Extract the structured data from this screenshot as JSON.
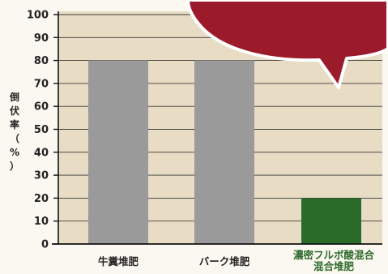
{
  "chart_data": {
    "type": "bar",
    "ylabel": "倒伏率（%）",
    "ylim": [
      0,
      100
    ],
    "yticks": [
      0,
      10,
      20,
      30,
      40,
      50,
      60,
      70,
      80,
      90,
      100
    ],
    "categories": [
      "牛糞堆肥",
      "バーク堆肥",
      "濃密フルボ酸混合混合堆肥"
    ],
    "category_lines": [
      [
        "牛糞堆肥"
      ],
      [
        "バーク堆肥"
      ],
      [
        "濃密フルボ酸混合",
        "混合堆肥"
      ]
    ],
    "values": [
      80,
      80,
      20
    ],
    "colors": {
      "plot_background": "#e8dcc4",
      "gridline": "#3a3a3a",
      "bar_gray": "#9a9a9a",
      "bar_green": "#2b6b29",
      "bubble": "#9c1b2b",
      "bubble_outline": "#ffffff",
      "label_green": "#2e6b2b"
    },
    "bar_colors": [
      "#9a9a9a",
      "#9a9a9a",
      "#2b6b29"
    ],
    "grid": true
  }
}
